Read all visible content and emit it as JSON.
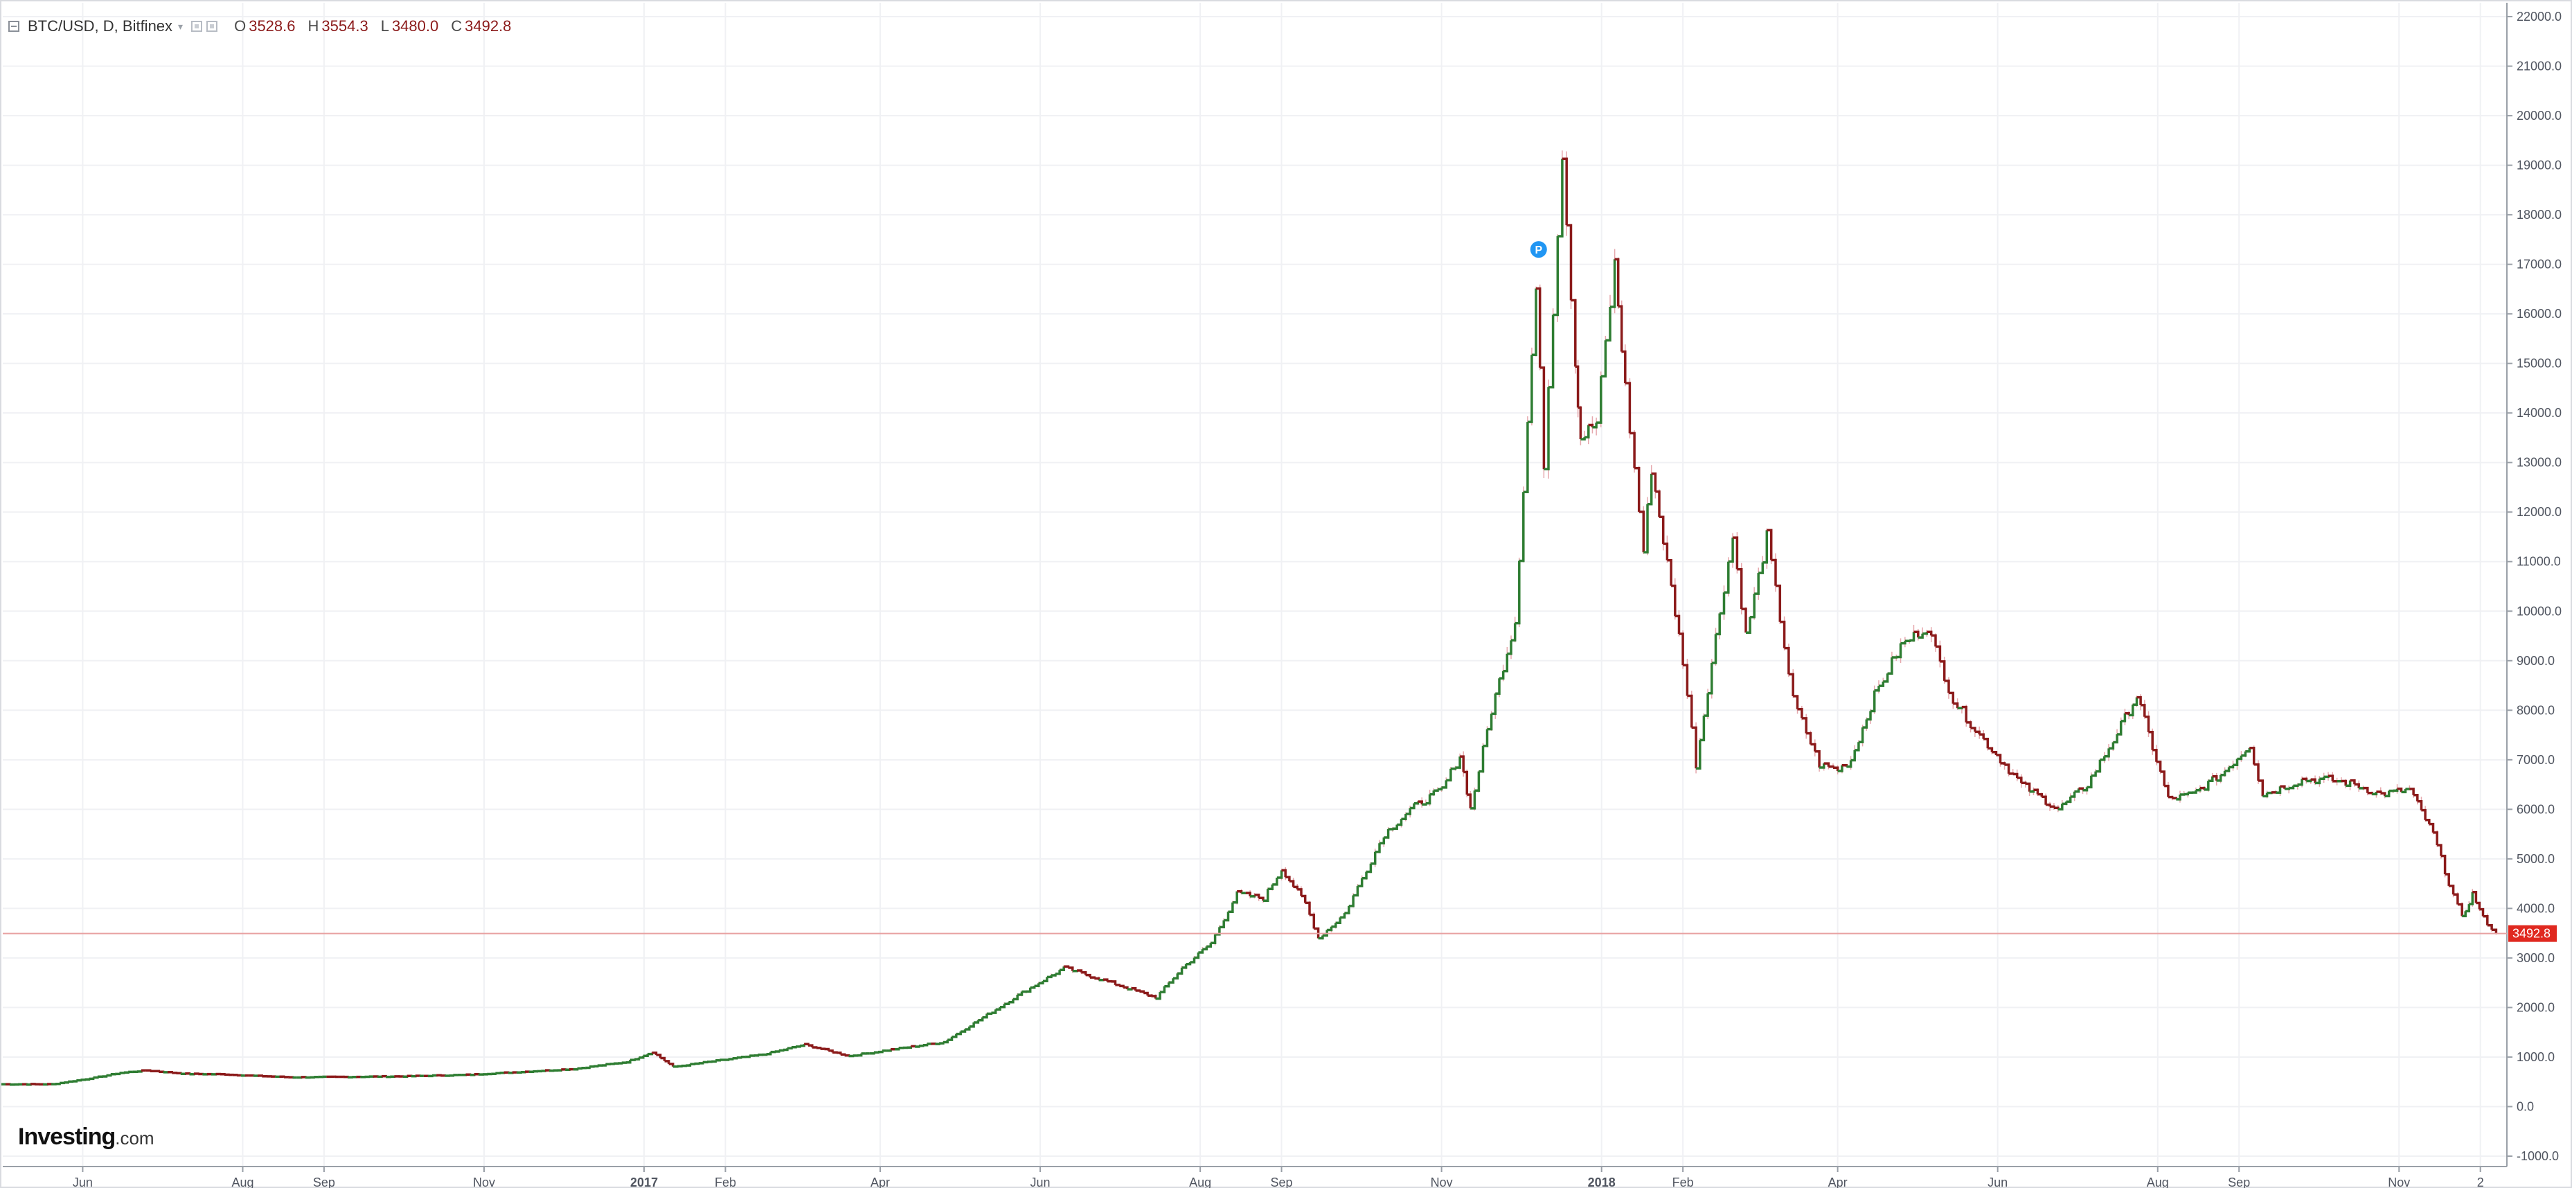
{
  "legend": {
    "symbol": "BTC/USD, D, Bitfinex",
    "open_key": "O",
    "open": "3528.6",
    "high_key": "H",
    "high": "3554.3",
    "low_key": "L",
    "low": "3480.0",
    "close_key": "C",
    "close": "3492.8"
  },
  "logo": {
    "brand": "Investing",
    "suffix": ".com"
  },
  "chart_data": {
    "type": "line",
    "style": "daily price bars (OHLC)",
    "colors": {
      "up": "#2e7d32",
      "down": "#8b1a1a",
      "wick": "#e6a8ad",
      "grid": "#f0f1f4",
      "last_price_line": "#e8a1a1",
      "last_price_tag": "#e0281f",
      "marker": "#2196f3"
    },
    "y_axis": {
      "position": "right",
      "ylim": [
        -1000,
        22000
      ],
      "ticks": [
        "22000.0",
        "21000.0",
        "20000.0",
        "19000.0",
        "18000.0",
        "17000.0",
        "16000.0",
        "15000.0",
        "14000.0",
        "13000.0",
        "12000.0",
        "11000.0",
        "10000.0",
        "9000.0",
        "8000.0",
        "7000.0",
        "6000.0",
        "5000.0",
        "4000.0",
        "3000.0",
        "2000.0",
        "1000.0",
        "0.0",
        "-1000.0"
      ]
    },
    "x_axis": {
      "range": [
        "2016-05-01",
        "2018-12-10"
      ],
      "ticks": [
        {
          "label": "Jun",
          "date": "2016-06-01",
          "bold": false
        },
        {
          "label": "Aug",
          "date": "2016-08-01",
          "bold": false
        },
        {
          "label": "Sep",
          "date": "2016-09-01",
          "bold": false
        },
        {
          "label": "Nov",
          "date": "2016-11-01",
          "bold": false
        },
        {
          "label": "2017",
          "date": "2017-01-01",
          "bold": true
        },
        {
          "label": "Feb",
          "date": "2017-02-01",
          "bold": false
        },
        {
          "label": "Apr",
          "date": "2017-04-01",
          "bold": false
        },
        {
          "label": "Jun",
          "date": "2017-06-01",
          "bold": false
        },
        {
          "label": "Aug",
          "date": "2017-08-01",
          "bold": false
        },
        {
          "label": "Sep",
          "date": "2017-09-01",
          "bold": false
        },
        {
          "label": "Nov",
          "date": "2017-11-01",
          "bold": false
        },
        {
          "label": "2018",
          "date": "2018-01-01",
          "bold": true
        },
        {
          "label": "Feb",
          "date": "2018-02-01",
          "bold": false
        },
        {
          "label": "Apr",
          "date": "2018-04-01",
          "bold": false
        },
        {
          "label": "Jun",
          "date": "2018-06-01",
          "bold": false
        },
        {
          "label": "Aug",
          "date": "2018-08-01",
          "bold": false
        },
        {
          "label": "Sep",
          "date": "2018-09-01",
          "bold": false
        },
        {
          "label": "Nov",
          "date": "2018-11-01",
          "bold": false
        },
        {
          "label": "2",
          "date": "2018-12-02",
          "bold": false
        }
      ]
    },
    "last_price": {
      "value": 3492.8,
      "label": "3492.8"
    },
    "marker": {
      "label": "P",
      "date": "2017-12-08",
      "value": 17300
    },
    "series": [
      {
        "x": [
          "2016-05-01",
          "2016-05-20",
          "2016-06-05",
          "2016-06-15",
          "2016-06-25",
          "2016-07-10",
          "2016-07-25",
          "2016-08-05",
          "2016-08-20",
          "2016-09-10",
          "2016-10-01",
          "2016-10-25",
          "2016-11-15",
          "2016-12-05",
          "2016-12-25",
          "2017-01-04",
          "2017-01-12",
          "2017-01-25",
          "2017-02-15",
          "2017-03-03",
          "2017-03-20",
          "2017-04-05",
          "2017-04-25",
          "2017-05-10",
          "2017-05-25",
          "2017-06-10",
          "2017-06-25",
          "2017-07-15",
          "2017-07-25",
          "2017-08-05",
          "2017-08-15",
          "2017-08-25",
          "2017-09-01",
          "2017-09-10",
          "2017-09-15",
          "2017-09-25",
          "2017-10-10",
          "2017-10-20",
          "2017-11-01",
          "2017-11-08",
          "2017-11-12",
          "2017-11-20",
          "2017-11-29",
          "2017-12-07",
          "2017-12-10",
          "2017-12-17",
          "2017-12-22",
          "2017-12-24",
          "2017-12-30",
          "2018-01-06",
          "2018-01-10",
          "2018-01-17",
          "2018-01-20",
          "2018-02-01",
          "2018-02-06",
          "2018-02-15",
          "2018-02-20",
          "2018-02-25",
          "2018-03-05",
          "2018-03-15",
          "2018-03-25",
          "2018-04-01",
          "2018-04-06",
          "2018-04-15",
          "2018-04-25",
          "2018-05-05",
          "2018-05-15",
          "2018-05-25",
          "2018-06-10",
          "2018-06-24",
          "2018-07-05",
          "2018-07-15",
          "2018-07-24",
          "2018-08-05",
          "2018-08-14",
          "2018-08-25",
          "2018-09-05",
          "2018-09-10",
          "2018-09-25",
          "2018-10-05",
          "2018-10-15",
          "2018-10-25",
          "2018-11-05",
          "2018-11-14",
          "2018-11-20",
          "2018-11-25",
          "2018-11-29",
          "2018-12-03",
          "2018-12-08"
        ],
        "y": [
          450,
          450,
          580,
          680,
          730,
          660,
          650,
          620,
          590,
          600,
          610,
          640,
          700,
          760,
          900,
          1100,
          800,
          900,
          1050,
          1250,
          1020,
          1150,
          1300,
          1800,
          2300,
          2800,
          2550,
          2200,
          2800,
          3300,
          4300,
          4200,
          4800,
          4100,
          3400,
          3900,
          5500,
          6000,
          6400,
          7100,
          6000,
          8000,
          9800,
          16500,
          13000,
          19300,
          15000,
          13500,
          13800,
          17000,
          14500,
          11200,
          12900,
          9000,
          6900,
          10000,
          11500,
          9500,
          11500,
          8200,
          6900,
          6800,
          7000,
          8300,
          9300,
          9700,
          8200,
          7500,
          6500,
          6000,
          6500,
          7400,
          8300,
          6200,
          6300,
          6700,
          7300,
          6300,
          6600,
          6600,
          6500,
          6300,
          6400,
          5500,
          4500,
          3800,
          4300,
          3800,
          3490
        ]
      }
    ]
  }
}
